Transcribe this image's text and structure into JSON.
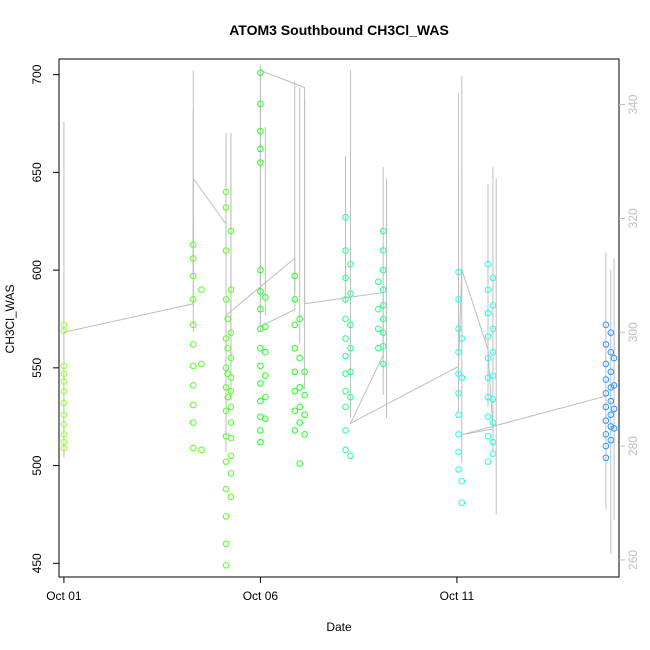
{
  "chart_data": {
    "type": "scatter",
    "title": "ATOM3 Southbound CH3Cl_WAS",
    "xlabel": "Date",
    "ylabel": "CH3Cl_WAS",
    "x_type": "date",
    "xlim": [
      "2017-09-30T21:00",
      "2017-10-15T03:00"
    ],
    "ylim": [
      443,
      708
    ],
    "x_ticks": [
      {
        "value": "2017-10-01T00:00",
        "label": "Oct 01"
      },
      {
        "value": "2017-10-06T00:00",
        "label": "Oct 06"
      },
      {
        "value": "2017-10-11T00:00",
        "label": "Oct 11"
      }
    ],
    "y_ticks": [
      450,
      500,
      550,
      600,
      650,
      700
    ],
    "secondary_axis": {
      "side": "right",
      "color": "#bebebe",
      "ylim": [
        257,
        348
      ],
      "ticks": [
        260,
        280,
        300,
        320,
        340
      ]
    },
    "grid": false,
    "legend": "none",
    "series": [
      {
        "color": "#99ff33",
        "points": [
          [
            "2017-10-01T00:00",
            572
          ],
          [
            "2017-10-01T00:00",
            569
          ],
          [
            "2017-10-01T00:00",
            551
          ],
          [
            "2017-10-01T00:00",
            547
          ],
          [
            "2017-10-01T00:00",
            543
          ],
          [
            "2017-10-01T00:00",
            538
          ],
          [
            "2017-10-01T00:00",
            532
          ],
          [
            "2017-10-01T00:00",
            526
          ],
          [
            "2017-10-01T00:00",
            521
          ],
          [
            "2017-10-01T00:00",
            516
          ],
          [
            "2017-10-01T00:00",
            512
          ],
          [
            "2017-10-01T00:00",
            509
          ]
        ]
      },
      {
        "color": "#55ff22",
        "points": [
          [
            "2017-10-04T07:00",
            613
          ],
          [
            "2017-10-04T07:00",
            606
          ],
          [
            "2017-10-04T07:00",
            597
          ],
          [
            "2017-10-04T07:00",
            585
          ],
          [
            "2017-10-04T07:00",
            572
          ],
          [
            "2017-10-04T07:00",
            562
          ],
          [
            "2017-10-04T07:00",
            551
          ],
          [
            "2017-10-04T07:00",
            541
          ],
          [
            "2017-10-04T07:00",
            531
          ],
          [
            "2017-10-04T07:00",
            522
          ],
          [
            "2017-10-04T07:00",
            509
          ],
          [
            "2017-10-04T12:00",
            590
          ],
          [
            "2017-10-04T12:00",
            552
          ],
          [
            "2017-10-04T12:00",
            508
          ],
          [
            "2017-10-05T03:00",
            640
          ],
          [
            "2017-10-05T03:00",
            632
          ],
          [
            "2017-10-05T03:00",
            610
          ],
          [
            "2017-10-05T03:00",
            585
          ],
          [
            "2017-10-05T03:00",
            565
          ],
          [
            "2017-10-05T03:00",
            550
          ],
          [
            "2017-10-05T03:00",
            540
          ],
          [
            "2017-10-05T03:00",
            528
          ],
          [
            "2017-10-05T03:00",
            515
          ],
          [
            "2017-10-05T03:00",
            502
          ],
          [
            "2017-10-05T03:00",
            488
          ],
          [
            "2017-10-05T03:00",
            474
          ],
          [
            "2017-10-05T03:00",
            460
          ],
          [
            "2017-10-05T03:00",
            449
          ],
          [
            "2017-10-05T06:00",
            620
          ],
          [
            "2017-10-05T06:00",
            590
          ],
          [
            "2017-10-05T06:00",
            568
          ],
          [
            "2017-10-05T06:00",
            555
          ],
          [
            "2017-10-05T06:00",
            545
          ],
          [
            "2017-10-05T06:00",
            538
          ],
          [
            "2017-10-05T06:00",
            530
          ],
          [
            "2017-10-05T06:00",
            522
          ],
          [
            "2017-10-05T06:00",
            514
          ],
          [
            "2017-10-05T06:00",
            505
          ],
          [
            "2017-10-05T06:00",
            496
          ],
          [
            "2017-10-05T06:00",
            484
          ],
          [
            "2017-10-05T04:00",
            575
          ],
          [
            "2017-10-05T04:00",
            560
          ],
          [
            "2017-10-05T04:00",
            547
          ],
          [
            "2017-10-05T04:00",
            535
          ]
        ]
      },
      {
        "color": "#22ff22",
        "points": [
          [
            "2017-10-06T00:00",
            701
          ],
          [
            "2017-10-06T00:00",
            685
          ],
          [
            "2017-10-06T00:00",
            671
          ],
          [
            "2017-10-06T00:00",
            662
          ],
          [
            "2017-10-06T00:00",
            655
          ],
          [
            "2017-10-06T00:00",
            600
          ],
          [
            "2017-10-06T00:00",
            589
          ],
          [
            "2017-10-06T00:00",
            580
          ],
          [
            "2017-10-06T00:00",
            570
          ],
          [
            "2017-10-06T00:00",
            560
          ],
          [
            "2017-10-06T00:00",
            551
          ],
          [
            "2017-10-06T00:00",
            542
          ],
          [
            "2017-10-06T00:00",
            533
          ],
          [
            "2017-10-06T00:00",
            525
          ],
          [
            "2017-10-06T00:00",
            518
          ],
          [
            "2017-10-06T00:00",
            512
          ],
          [
            "2017-10-06T03:00",
            586
          ],
          [
            "2017-10-06T03:00",
            571
          ],
          [
            "2017-10-06T03:00",
            558
          ],
          [
            "2017-10-06T03:00",
            546
          ],
          [
            "2017-10-06T03:00",
            535
          ],
          [
            "2017-10-06T03:00",
            524
          ],
          [
            "2017-10-06T21:00",
            597
          ],
          [
            "2017-10-06T21:00",
            585
          ],
          [
            "2017-10-06T21:00",
            572
          ],
          [
            "2017-10-06T21:00",
            560
          ],
          [
            "2017-10-06T21:00",
            548
          ],
          [
            "2017-10-06T21:00",
            538
          ],
          [
            "2017-10-06T21:00",
            528
          ],
          [
            "2017-10-06T21:00",
            518
          ],
          [
            "2017-10-07T00:00",
            575
          ],
          [
            "2017-10-07T00:00",
            555
          ],
          [
            "2017-10-07T00:00",
            540
          ],
          [
            "2017-10-07T00:00",
            530
          ],
          [
            "2017-10-07T00:00",
            522
          ],
          [
            "2017-10-07T00:00",
            501
          ],
          [
            "2017-10-07T03:00",
            548
          ],
          [
            "2017-10-07T03:00",
            536
          ],
          [
            "2017-10-07T03:00",
            526
          ],
          [
            "2017-10-07T03:00",
            516
          ]
        ]
      },
      {
        "color": "#22ff88",
        "points": [
          [
            "2017-10-08T04:00",
            627
          ],
          [
            "2017-10-08T04:00",
            610
          ],
          [
            "2017-10-08T04:00",
            596
          ],
          [
            "2017-10-08T04:00",
            585
          ],
          [
            "2017-10-08T04:00",
            575
          ],
          [
            "2017-10-08T04:00",
            565
          ],
          [
            "2017-10-08T04:00",
            556
          ],
          [
            "2017-10-08T04:00",
            547
          ],
          [
            "2017-10-08T04:00",
            538
          ],
          [
            "2017-10-08T04:00",
            530
          ],
          [
            "2017-10-08T04:00",
            518
          ],
          [
            "2017-10-08T04:00",
            508
          ],
          [
            "2017-10-08T07:00",
            603
          ],
          [
            "2017-10-08T07:00",
            588
          ],
          [
            "2017-10-08T07:00",
            572
          ],
          [
            "2017-10-08T07:00",
            560
          ],
          [
            "2017-10-08T07:00",
            548
          ],
          [
            "2017-10-08T07:00",
            535
          ],
          [
            "2017-10-08T07:00",
            505
          ],
          [
            "2017-10-09T03:00",
            620
          ],
          [
            "2017-10-09T03:00",
            610
          ],
          [
            "2017-10-09T03:00",
            600
          ],
          [
            "2017-10-09T03:00",
            590
          ],
          [
            "2017-10-09T03:00",
            582
          ],
          [
            "2017-10-09T03:00",
            575
          ],
          [
            "2017-10-09T03:00",
            568
          ],
          [
            "2017-10-09T03:00",
            561
          ],
          [
            "2017-10-09T03:00",
            552
          ],
          [
            "2017-10-09T00:00",
            594
          ],
          [
            "2017-10-09T00:00",
            580
          ],
          [
            "2017-10-09T00:00",
            570
          ],
          [
            "2017-10-09T00:00",
            560
          ]
        ]
      },
      {
        "color": "#22ffee",
        "points": [
          [
            "2017-10-11T01:00",
            599
          ],
          [
            "2017-10-11T01:00",
            585
          ],
          [
            "2017-10-11T01:00",
            570
          ],
          [
            "2017-10-11T01:00",
            558
          ],
          [
            "2017-10-11T01:00",
            547
          ],
          [
            "2017-10-11T01:00",
            537
          ],
          [
            "2017-10-11T01:00",
            526
          ],
          [
            "2017-10-11T01:00",
            516
          ],
          [
            "2017-10-11T01:00",
            507
          ],
          [
            "2017-10-11T01:00",
            498
          ],
          [
            "2017-10-11T03:00",
            492
          ],
          [
            "2017-10-11T03:00",
            481
          ],
          [
            "2017-10-11T03:00",
            565
          ],
          [
            "2017-10-11T03:00",
            545
          ],
          [
            "2017-10-11T19:00",
            603
          ],
          [
            "2017-10-11T19:00",
            590
          ],
          [
            "2017-10-11T19:00",
            578
          ],
          [
            "2017-10-11T19:00",
            566
          ],
          [
            "2017-10-11T19:00",
            555
          ],
          [
            "2017-10-11T19:00",
            545
          ],
          [
            "2017-10-11T19:00",
            535
          ],
          [
            "2017-10-11T19:00",
            525
          ],
          [
            "2017-10-11T19:00",
            515
          ],
          [
            "2017-10-11T19:00",
            502
          ],
          [
            "2017-10-11T22:00",
            596
          ],
          [
            "2017-10-11T22:00",
            582
          ],
          [
            "2017-10-11T22:00",
            570
          ],
          [
            "2017-10-11T22:00",
            558
          ],
          [
            "2017-10-11T22:00",
            546
          ],
          [
            "2017-10-11T22:00",
            534
          ],
          [
            "2017-10-11T22:00",
            522
          ],
          [
            "2017-10-11T22:00",
            512
          ],
          [
            "2017-10-11T22:00",
            506
          ]
        ]
      },
      {
        "color": "#2299ff",
        "points": [
          [
            "2017-10-14T19:00",
            572
          ],
          [
            "2017-10-14T19:00",
            562
          ],
          [
            "2017-10-14T19:00",
            552
          ],
          [
            "2017-10-14T19:00",
            544
          ],
          [
            "2017-10-14T19:00",
            537
          ],
          [
            "2017-10-14T19:00",
            530
          ],
          [
            "2017-10-14T19:00",
            523
          ],
          [
            "2017-10-14T19:00",
            516
          ],
          [
            "2017-10-14T19:00",
            510
          ],
          [
            "2017-10-14T19:00",
            504
          ],
          [
            "2017-10-14T22:00",
            568
          ],
          [
            "2017-10-14T22:00",
            558
          ],
          [
            "2017-10-14T22:00",
            548
          ],
          [
            "2017-10-14T22:00",
            540
          ],
          [
            "2017-10-14T22:00",
            533
          ],
          [
            "2017-10-14T22:00",
            526
          ],
          [
            "2017-10-14T22:00",
            520
          ],
          [
            "2017-10-14T22:00",
            513
          ],
          [
            "2017-10-15T00:00",
            555
          ],
          [
            "2017-10-15T00:00",
            541
          ],
          [
            "2017-10-15T00:00",
            529
          ],
          [
            "2017-10-15T00:00",
            519
          ]
        ]
      }
    ],
    "secondary_series": {
      "type": "line",
      "color": "#bebebe",
      "spikes": [
        [
          "2017-10-01T00:00",
          278,
          337
        ],
        [
          "2017-10-04T07:00",
          310,
          339
        ],
        [
          "2017-10-04T07:00",
          300,
          346
        ],
        [
          "2017-10-04T07:00",
          311,
          320
        ],
        [
          "2017-10-05T03:00",
          281,
          333
        ],
        [
          "2017-10-05T03:00",
          280,
          335
        ],
        [
          "2017-10-05T03:00",
          279,
          329
        ],
        [
          "2017-10-05T06:00",
          294,
          335
        ],
        [
          "2017-10-05T06:00",
          288,
          327
        ],
        [
          "2017-10-06T00:00",
          300,
          347
        ],
        [
          "2017-10-06T00:00",
          309,
          341
        ],
        [
          "2017-10-06T03:00",
          303,
          336
        ],
        [
          "2017-10-06T21:00",
          307,
          344
        ],
        [
          "2017-10-07T00:00",
          298,
          343
        ],
        [
          "2017-10-07T03:00",
          290,
          341
        ],
        [
          "2017-10-08T04:00",
          309,
          331
        ],
        [
          "2017-10-08T04:00",
          305,
          326
        ],
        [
          "2017-10-08T07:00",
          285,
          346
        ],
        [
          "2017-10-09T03:00",
          289,
          329
        ],
        [
          "2017-10-09T05:00",
          285,
          327
        ],
        [
          "2017-10-11T01:00",
          298,
          342
        ],
        [
          "2017-10-11T01:00",
          286,
          328
        ],
        [
          "2017-10-11T03:00",
          277,
          345
        ],
        [
          "2017-10-11T19:00",
          287,
          326
        ],
        [
          "2017-10-11T22:00",
          279,
          329
        ],
        [
          "2017-10-12T00:00",
          268,
          327
        ],
        [
          "2017-10-14T19:00",
          269,
          314
        ],
        [
          "2017-10-14T22:00",
          261,
          311
        ],
        [
          "2017-10-15T00:00",
          267,
          313
        ]
      ],
      "path": [
        [
          "2017-10-01T00:00",
          300
        ],
        [
          "2017-10-04T07:00",
          305
        ],
        [
          "2017-10-04T07:00",
          327
        ],
        [
          "2017-10-05T03:00",
          319
        ],
        [
          "2017-10-05T03:00",
          303
        ],
        [
          "2017-10-06T00:00",
          308
        ],
        [
          "2017-10-06T21:00",
          313
        ],
        [
          "2017-10-06T21:00",
          304
        ],
        [
          "2017-10-06T00:00",
          301
        ],
        [
          "2017-10-06T00:00",
          346
        ],
        [
          "2017-10-07T03:00",
          343
        ],
        [
          "2017-10-07T03:00",
          305
        ],
        [
          "2017-10-09T03:00",
          307
        ],
        [
          "2017-10-09T03:00",
          296
        ],
        [
          "2017-10-08T07:00",
          284
        ],
        [
          "2017-10-11T01:00",
          294
        ],
        [
          "2017-10-11T03:00",
          311
        ],
        [
          "2017-10-11T19:00",
          297
        ],
        [
          "2017-10-11T22:00",
          283
        ],
        [
          "2017-10-11T03:00",
          282
        ],
        [
          "2017-10-14T22:00",
          289
        ]
      ]
    }
  }
}
